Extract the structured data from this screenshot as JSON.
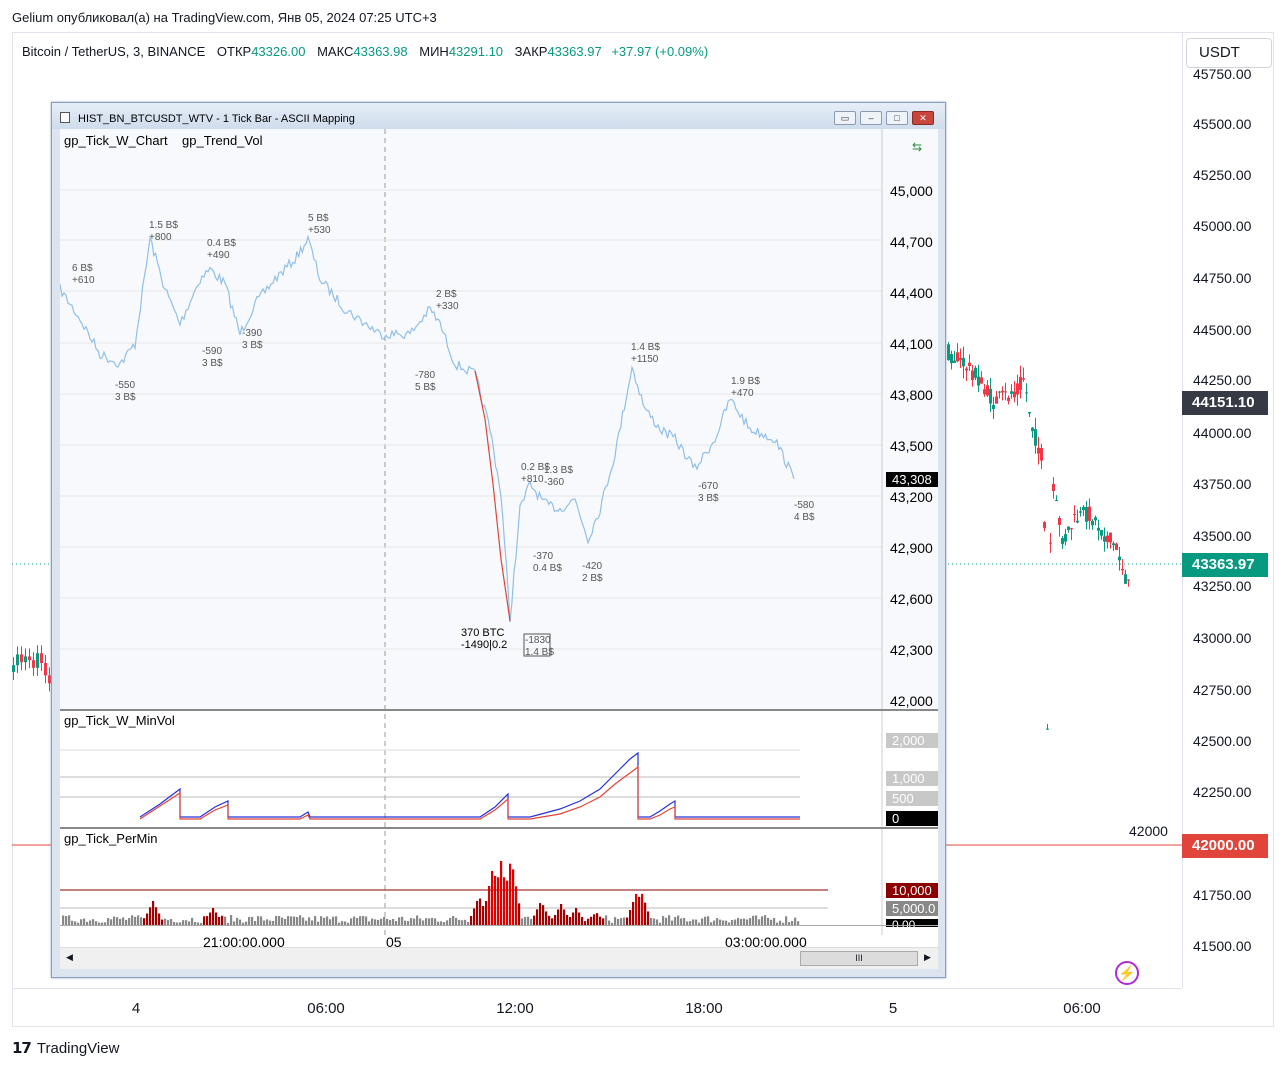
{
  "header": {
    "publish_line": "Gelium опубликовал(а) на TradingView.com, Янв 05, 2024 07:25 UTC+3"
  },
  "legend": {
    "symbol": "Bitcoin / TetherUS, 3, BINANCE",
    "open_label": "ОТКР",
    "open": "43326.00",
    "high_label": "МАКС",
    "high": "43363.98",
    "low_label": "МИН",
    "low": "43291.10",
    "close_label": "ЗАКР",
    "close": "43363.97",
    "change": "+37.97 (+0.09%)"
  },
  "right_scale": {
    "currency": "USDT",
    "ticks": [
      "45750.00",
      "45500.00",
      "45250.00",
      "45000.00",
      "44750.00",
      "44500.00",
      "44250.00",
      "44000.00",
      "43750.00",
      "43500.00",
      "43250.00",
      "43000.00",
      "42750.00",
      "42500.00",
      "42250.00",
      "41750.00",
      "41500.00"
    ],
    "badge_dark": "44151.10",
    "badge_green": "43363.97",
    "badge_red": "42000.00",
    "line_label": "42000"
  },
  "bottom_axis": {
    "ticks": [
      "4",
      "06:00",
      "12:00",
      "18:00",
      "5",
      "06:00"
    ]
  },
  "branding": {
    "logo_text": "TradingView"
  },
  "window": {
    "title": "HIST_BN_BTCUSDT_WTV - 1 Tick Bar - ASCII Mapping",
    "buttons": [
      "restore",
      "minimize",
      "maximize",
      "close"
    ],
    "pane1": {
      "studies": [
        "gp_Tick_W_Chart",
        "gp_Trend_Vol"
      ],
      "ticks": [
        "45,000",
        "44,700",
        "44,400",
        "44,100",
        "43,800",
        "43,500",
        "43,200",
        "42,900",
        "42,600",
        "42,300",
        "42,000"
      ],
      "last_price": "43,308",
      "annotations": [
        [
          "6 B$",
          "+610"
        ],
        [
          "1.5 B$",
          "+800"
        ],
        [
          "0.4 B$",
          "+490"
        ],
        [
          "5 B$",
          "+530"
        ],
        [
          "-550",
          "3 B$"
        ],
        [
          "-590",
          "3 B$"
        ],
        [
          "-390",
          "3 B$"
        ],
        [
          "2 B$",
          "+330"
        ],
        [
          "-780",
          "5 B$"
        ],
        [
          "1.4 B$",
          "+1150"
        ],
        [
          "1.9 B$",
          "+470"
        ],
        [
          "-670",
          "3 B$"
        ],
        [
          "-580",
          "4 B$"
        ],
        [
          "0.2 B$",
          "+810"
        ],
        [
          "1.3 B$",
          "-360"
        ],
        [
          "-370",
          "0.4 B$"
        ],
        [
          "-420",
          "2 B$"
        ],
        [
          "370 BTC",
          "-1490|0.2"
        ],
        [
          "-1830",
          "1.4 B$"
        ]
      ]
    },
    "pane2": {
      "study": "gp_Tick_W_MinVol",
      "labels": [
        "2,000",
        "1,000",
        "500",
        "0"
      ]
    },
    "pane3": {
      "study": "gp_Tick_PerMin",
      "labels": [
        "10,000",
        "5,000.0",
        "0.00"
      ]
    },
    "time_axis": [
      "21:00:00.000",
      "05",
      "03:00:00.000"
    ],
    "scroll_thumb": "III"
  },
  "colors": {
    "up": "#089981",
    "down": "#f23645",
    "line_blue": "#90bfe8",
    "red_line": "#e0443a"
  }
}
